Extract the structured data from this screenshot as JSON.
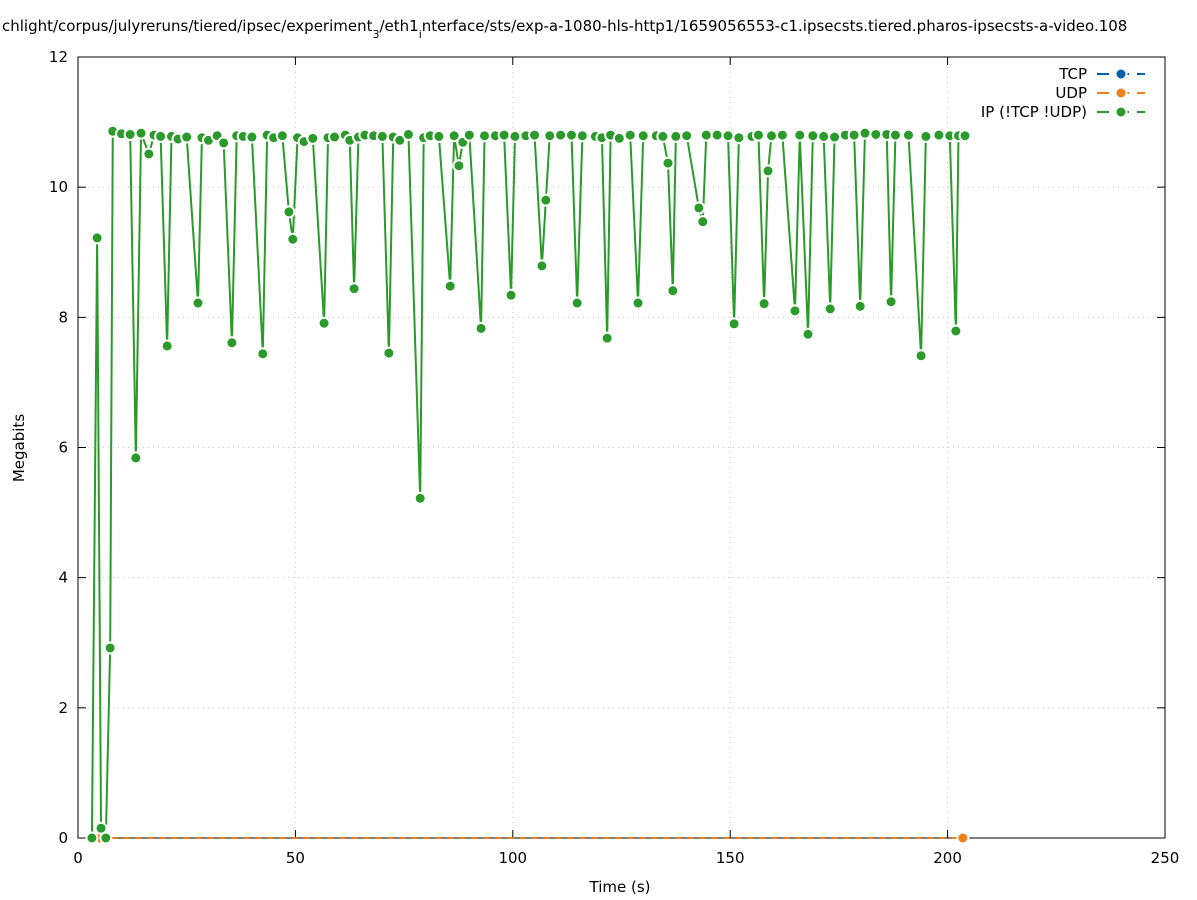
{
  "chart_data": {
    "type": "line",
    "title": [
      "chlight/corpus/julyreruns/tiered/ipsec/experiment",
      "3",
      "/eth1",
      "i",
      "nterface/sts/exp-a-1080-hls-http1/1659056553-c1.ipsecsts.tiered.pharos-ipsecsts-a-video.108"
    ],
    "x_label": "Time (s)",
    "y_label": "Megabits",
    "xlim": [
      0,
      250
    ],
    "ylim": [
      0,
      12
    ],
    "xticks": [
      0,
      50,
      100,
      150,
      200,
      250
    ],
    "yticks": [
      0,
      2,
      4,
      6,
      8,
      10,
      12
    ],
    "grid": true,
    "legend": "top-right",
    "series": [
      {
        "name": "TCP",
        "color": "#0060ad",
        "x": [],
        "values": []
      },
      {
        "name": "UDP",
        "color": "#ef7f1a",
        "x": [
          5,
          203.5
        ],
        "values": [
          0,
          0
        ]
      },
      {
        "name": "IP (!TCP  !UDP)",
        "color": "#2a9a2a",
        "x": [
          3.2,
          4.4,
          5.3,
          6.4,
          7.4,
          8.0,
          10,
          12,
          13.3,
          14.5,
          16.3,
          17.5,
          19,
          20.5,
          21.5,
          23,
          25,
          27.6,
          28.5,
          30,
          32,
          33.5,
          35.4,
          36.5,
          38,
          40,
          42.5,
          43.5,
          45,
          47,
          48.5,
          49.4,
          50.5,
          52,
          54,
          56.6,
          57.5,
          59,
          61.5,
          62.5,
          63.5,
          64.5,
          66,
          68,
          70,
          71.5,
          72.5,
          74,
          76,
          78.7,
          79.5,
          81,
          83,
          85.6,
          86.5,
          87.6,
          88.5,
          90,
          92.7,
          93.5,
          96,
          98,
          99.6,
          100.5,
          103,
          105,
          106.7,
          107.6,
          108.5,
          111,
          113.5,
          114.8,
          116,
          119,
          120.5,
          121.7,
          122.5,
          124.5,
          127,
          128.8,
          130,
          133,
          134.5,
          135.7,
          136.8,
          137.5,
          140,
          142.8,
          143.7,
          144.5,
          147,
          149.5,
          150.9,
          152,
          155,
          156.5,
          157.8,
          158.7,
          159.5,
          162,
          164.9,
          166,
          167.9,
          169,
          171.5,
          173,
          174,
          176.5,
          178.5,
          179.9,
          181,
          183.5,
          186,
          187,
          188,
          191,
          193.9,
          195,
          198,
          200.5,
          201.9,
          202.5,
          204.0
        ],
        "values": [
          0,
          9.22,
          0.15,
          0,
          2.92,
          10.86,
          10.82,
          10.81,
          5.84,
          10.83,
          10.51,
          10.8,
          10.78,
          7.56,
          10.78,
          10.74,
          10.77,
          8.22,
          10.76,
          10.72,
          10.79,
          10.68,
          7.61,
          10.79,
          10.78,
          10.77,
          7.44,
          10.8,
          10.76,
          10.79,
          9.62,
          9.2,
          10.76,
          10.7,
          10.75,
          7.91,
          10.76,
          10.77,
          10.8,
          10.72,
          8.44,
          10.77,
          10.8,
          10.79,
          10.78,
          7.45,
          10.77,
          10.72,
          10.81,
          5.22,
          10.76,
          10.79,
          10.78,
          8.48,
          10.79,
          10.33,
          10.69,
          10.8,
          7.83,
          10.79,
          10.79,
          10.8,
          8.34,
          10.78,
          10.79,
          10.8,
          8.79,
          9.8,
          10.79,
          10.8,
          10.8,
          8.22,
          10.79,
          10.78,
          10.76,
          7.68,
          10.8,
          10.75,
          10.8,
          8.22,
          10.79,
          10.79,
          10.78,
          10.37,
          8.41,
          10.78,
          10.79,
          9.68,
          9.47,
          10.8,
          10.8,
          10.79,
          7.9,
          10.76,
          10.78,
          10.8,
          8.21,
          10.25,
          10.79,
          10.8,
          8.1,
          10.8,
          7.74,
          10.79,
          10.78,
          8.13,
          10.77,
          10.8,
          10.8,
          8.17,
          10.83,
          10.81,
          10.81,
          8.24,
          10.8,
          10.8,
          7.41,
          10.78,
          10.8,
          10.79,
          7.79,
          10.79,
          10.79
        ]
      }
    ]
  }
}
